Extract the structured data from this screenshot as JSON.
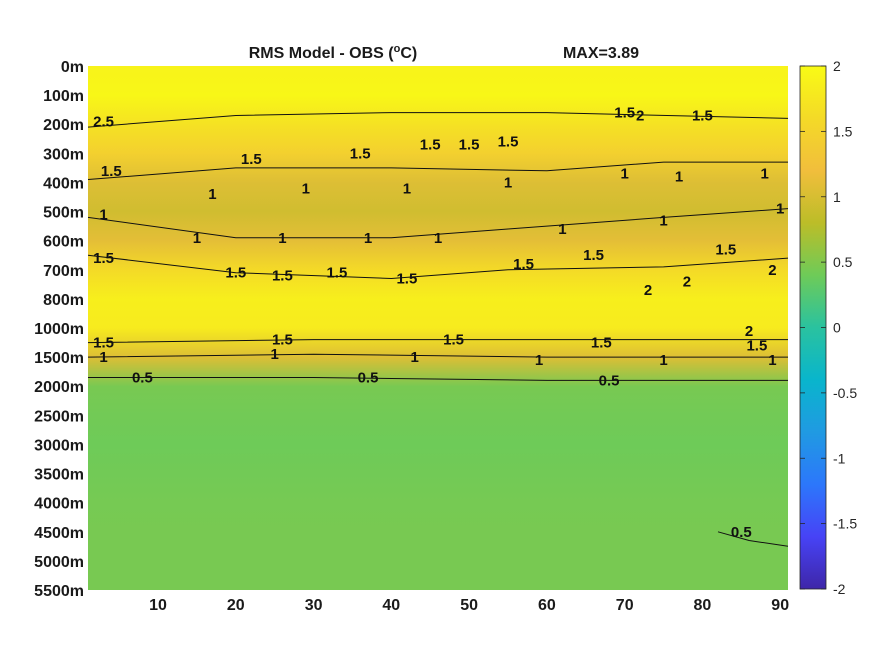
{
  "chart_data": {
    "type": "heatmap",
    "title": "RMS Model - OBS (°C)",
    "title_parts": {
      "prefix": "RMS Model - OBS (",
      "superscript": "o",
      "suffix": "C)"
    },
    "max_label": "MAX=3.89",
    "x_ticks": [
      10,
      20,
      30,
      40,
      50,
      60,
      70,
      80,
      90
    ],
    "xlim": [
      1,
      91
    ],
    "y_ticks": [
      "0m",
      "100m",
      "200m",
      "300m",
      "400m",
      "500m",
      "600m",
      "700m",
      "800m",
      "1000m",
      "1500m",
      "2000m",
      "2500m",
      "3000m",
      "3500m",
      "4000m",
      "4500m",
      "5000m",
      "5500m"
    ],
    "y_reversed": true,
    "colorbar": {
      "ticks": [
        2,
        1.5,
        1,
        0.5,
        0,
        -0.5,
        -1,
        -1.5,
        -2
      ],
      "range": [
        -2,
        2
      ],
      "colormap": "parula"
    },
    "colormap_stops": [
      "#3e26a8",
      "#4743f6",
      "#2c77fb",
      "#209ae2",
      "#09b5cc",
      "#2ac29f",
      "#6ecb58",
      "#bcbd28",
      "#f1be3c",
      "#f4da27",
      "#f9fb15"
    ],
    "levels": [
      0.5,
      1,
      1.5,
      2
    ],
    "profile": [
      {
        "depth": "0m",
        "value": 1.9
      },
      {
        "depth": "100m",
        "value": 1.95
      },
      {
        "depth": "200m",
        "value": 1.7
      },
      {
        "depth": "300m",
        "value": 1.45
      },
      {
        "depth": "400m",
        "value": 1.05
      },
      {
        "depth": "500m",
        "value": 0.95
      },
      {
        "depth": "600m",
        "value": 1.1
      },
      {
        "depth": "700m",
        "value": 1.6
      },
      {
        "depth": "800m",
        "value": 1.85
      },
      {
        "depth": "1000m",
        "value": 1.8
      },
      {
        "depth": "1500m",
        "value": 1.05
      },
      {
        "depth": "2000m",
        "value": 0.45
      },
      {
        "depth": "2500m",
        "value": 0.42
      },
      {
        "depth": "3000m",
        "value": 0.4
      },
      {
        "depth": "3500m",
        "value": 0.42
      },
      {
        "depth": "4000m",
        "value": 0.44
      },
      {
        "depth": "4500m",
        "value": 0.45
      },
      {
        "depth": "5000m",
        "value": 0.45
      },
      {
        "depth": "5500m",
        "value": 0.45
      }
    ],
    "contour_lines": [
      {
        "level": 1.5,
        "points": [
          [
            1,
            2.1
          ],
          [
            20,
            1.7
          ],
          [
            40,
            1.6
          ],
          [
            60,
            1.6
          ],
          [
            91,
            1.8
          ]
        ]
      },
      {
        "level": 1,
        "points": [
          [
            1,
            3.9
          ],
          [
            20,
            3.5
          ],
          [
            40,
            3.5
          ],
          [
            60,
            3.6
          ],
          [
            75,
            3.3
          ],
          [
            91,
            3.3
          ]
        ]
      },
      {
        "level": 1,
        "points": [
          [
            1,
            5.2
          ],
          [
            20,
            5.9
          ],
          [
            40,
            5.9
          ],
          [
            55,
            5.6
          ],
          [
            75,
            5.2
          ],
          [
            91,
            4.9
          ]
        ]
      },
      {
        "level": 1.5,
        "points": [
          [
            1,
            6.5
          ],
          [
            20,
            7.1
          ],
          [
            40,
            7.3
          ],
          [
            55,
            7.0
          ],
          [
            75,
            6.9
          ],
          [
            91,
            6.6
          ]
        ]
      },
      {
        "level": 1.5,
        "points": [
          [
            1,
            9.5
          ],
          [
            30,
            9.4
          ],
          [
            60,
            9.4
          ],
          [
            91,
            9.4
          ]
        ]
      },
      {
        "level": 1,
        "points": [
          [
            1,
            10.0
          ],
          [
            30,
            9.9
          ],
          [
            60,
            10.0
          ],
          [
            91,
            10.0
          ]
        ]
      },
      {
        "level": 0.5,
        "points": [
          [
            1,
            10.7
          ],
          [
            30,
            10.7
          ],
          [
            60,
            10.8
          ],
          [
            91,
            10.8
          ]
        ]
      },
      {
        "level": 0.5,
        "points": [
          [
            82,
            16.0
          ],
          [
            86,
            16.3
          ],
          [
            91,
            16.5
          ]
        ]
      }
    ],
    "contour_labels": [
      {
        "text": "2.5",
        "x": 3,
        "y": 1.9
      },
      {
        "text": "2",
        "x": 72,
        "y": 1.7
      },
      {
        "text": "1.5",
        "x": 4,
        "y": 3.6
      },
      {
        "text": "1.5",
        "x": 22,
        "y": 3.2
      },
      {
        "text": "1.5",
        "x": 36,
        "y": 3.0
      },
      {
        "text": "1.5",
        "x": 45,
        "y": 2.7
      },
      {
        "text": "1.5",
        "x": 50,
        "y": 2.7
      },
      {
        "text": "1.5",
        "x": 55,
        "y": 2.6
      },
      {
        "text": "1.5",
        "x": 70,
        "y": 1.6
      },
      {
        "text": "1.5",
        "x": 80,
        "y": 1.7
      },
      {
        "text": "1",
        "x": 17,
        "y": 4.4
      },
      {
        "text": "1",
        "x": 29,
        "y": 4.2
      },
      {
        "text": "1",
        "x": 42,
        "y": 4.2
      },
      {
        "text": "1",
        "x": 55,
        "y": 4.0
      },
      {
        "text": "1",
        "x": 70,
        "y": 3.7
      },
      {
        "text": "1",
        "x": 77,
        "y": 3.8
      },
      {
        "text": "1",
        "x": 88,
        "y": 3.7
      },
      {
        "text": "1",
        "x": 3,
        "y": 5.1
      },
      {
        "text": "1",
        "x": 15,
        "y": 5.9
      },
      {
        "text": "1",
        "x": 26,
        "y": 5.9
      },
      {
        "text": "1",
        "x": 37,
        "y": 5.9
      },
      {
        "text": "1",
        "x": 46,
        "y": 5.9
      },
      {
        "text": "1",
        "x": 62,
        "y": 5.6
      },
      {
        "text": "1",
        "x": 75,
        "y": 5.3
      },
      {
        "text": "1",
        "x": 90,
        "y": 4.9
      },
      {
        "text": "1.5",
        "x": 3,
        "y": 6.6
      },
      {
        "text": "1.5",
        "x": 20,
        "y": 7.1
      },
      {
        "text": "1.5",
        "x": 26,
        "y": 7.2
      },
      {
        "text": "1.5",
        "x": 33,
        "y": 7.1
      },
      {
        "text": "1.5",
        "x": 42,
        "y": 7.3
      },
      {
        "text": "1.5",
        "x": 57,
        "y": 6.8
      },
      {
        "text": "1.5",
        "x": 66,
        "y": 6.5
      },
      {
        "text": "1.5",
        "x": 83,
        "y": 6.3
      },
      {
        "text": "2",
        "x": 78,
        "y": 7.4
      },
      {
        "text": "2",
        "x": 89,
        "y": 7.0
      },
      {
        "text": "2",
        "x": 73,
        "y": 7.7
      },
      {
        "text": "2",
        "x": 86,
        "y": 9.1
      },
      {
        "text": "1.5",
        "x": 3,
        "y": 9.5
      },
      {
        "text": "1.5",
        "x": 26,
        "y": 9.4
      },
      {
        "text": "1.5",
        "x": 48,
        "y": 9.4
      },
      {
        "text": "1.5",
        "x": 67,
        "y": 9.5
      },
      {
        "text": "1.5",
        "x": 87,
        "y": 9.6
      },
      {
        "text": "1",
        "x": 3,
        "y": 10.0
      },
      {
        "text": "1",
        "x": 25,
        "y": 9.9
      },
      {
        "text": "1",
        "x": 43,
        "y": 10.0
      },
      {
        "text": "1",
        "x": 59,
        "y": 10.1
      },
      {
        "text": "1",
        "x": 75,
        "y": 10.1
      },
      {
        "text": "1",
        "x": 89,
        "y": 10.1
      },
      {
        "text": "0.5",
        "x": 8,
        "y": 10.7
      },
      {
        "text": "0.5",
        "x": 37,
        "y": 10.7
      },
      {
        "text": "0.5",
        "x": 68,
        "y": 10.8
      },
      {
        "text": "0.5",
        "x": 85,
        "y": 16.0
      }
    ]
  }
}
